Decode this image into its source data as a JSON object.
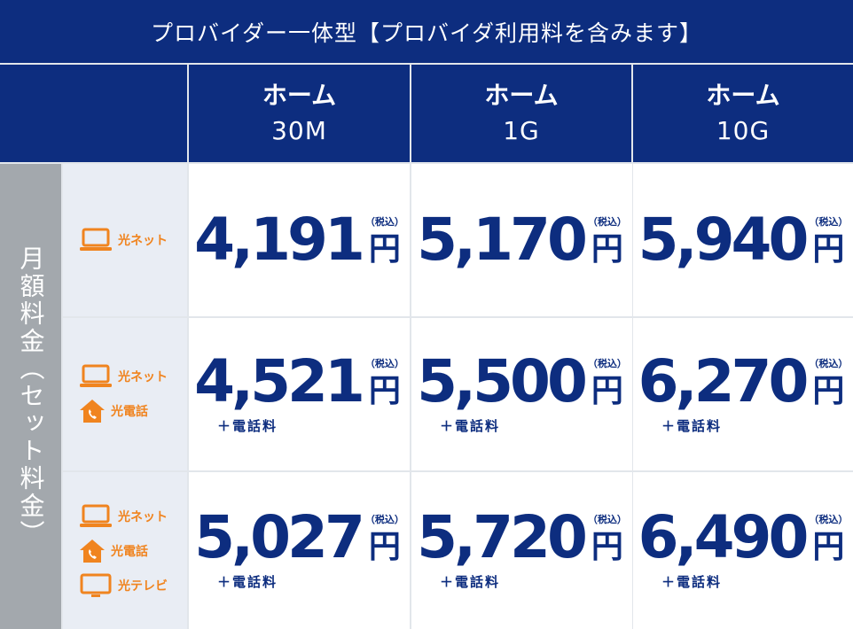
{
  "title": "プロバイダー一体型【プロバイダ利用料を含みます】",
  "plans": [
    {
      "line1": "ホーム",
      "line2": "30M"
    },
    {
      "line1": "ホーム",
      "line2": "1G"
    },
    {
      "line1": "ホーム",
      "line2": "10G"
    }
  ],
  "side_label": "月額料金（セット料金）",
  "services": {
    "net": "光ネット",
    "phone": "光電話",
    "tv": "光テレビ"
  },
  "tax_label": "（税込）",
  "yen": "円",
  "phone_note": "＋電話料",
  "rows": [
    {
      "prices": [
        "4,191",
        "5,170",
        "5,940"
      ]
    },
    {
      "prices": [
        "4,521",
        "5,500",
        "6,270"
      ]
    },
    {
      "prices": [
        "5,027",
        "5,720",
        "6,490"
      ]
    }
  ],
  "colors": {
    "navy": "#0d2d7f",
    "orange": "#f0841f",
    "gray": "#a3a8ad",
    "light": "#e9edf4"
  }
}
